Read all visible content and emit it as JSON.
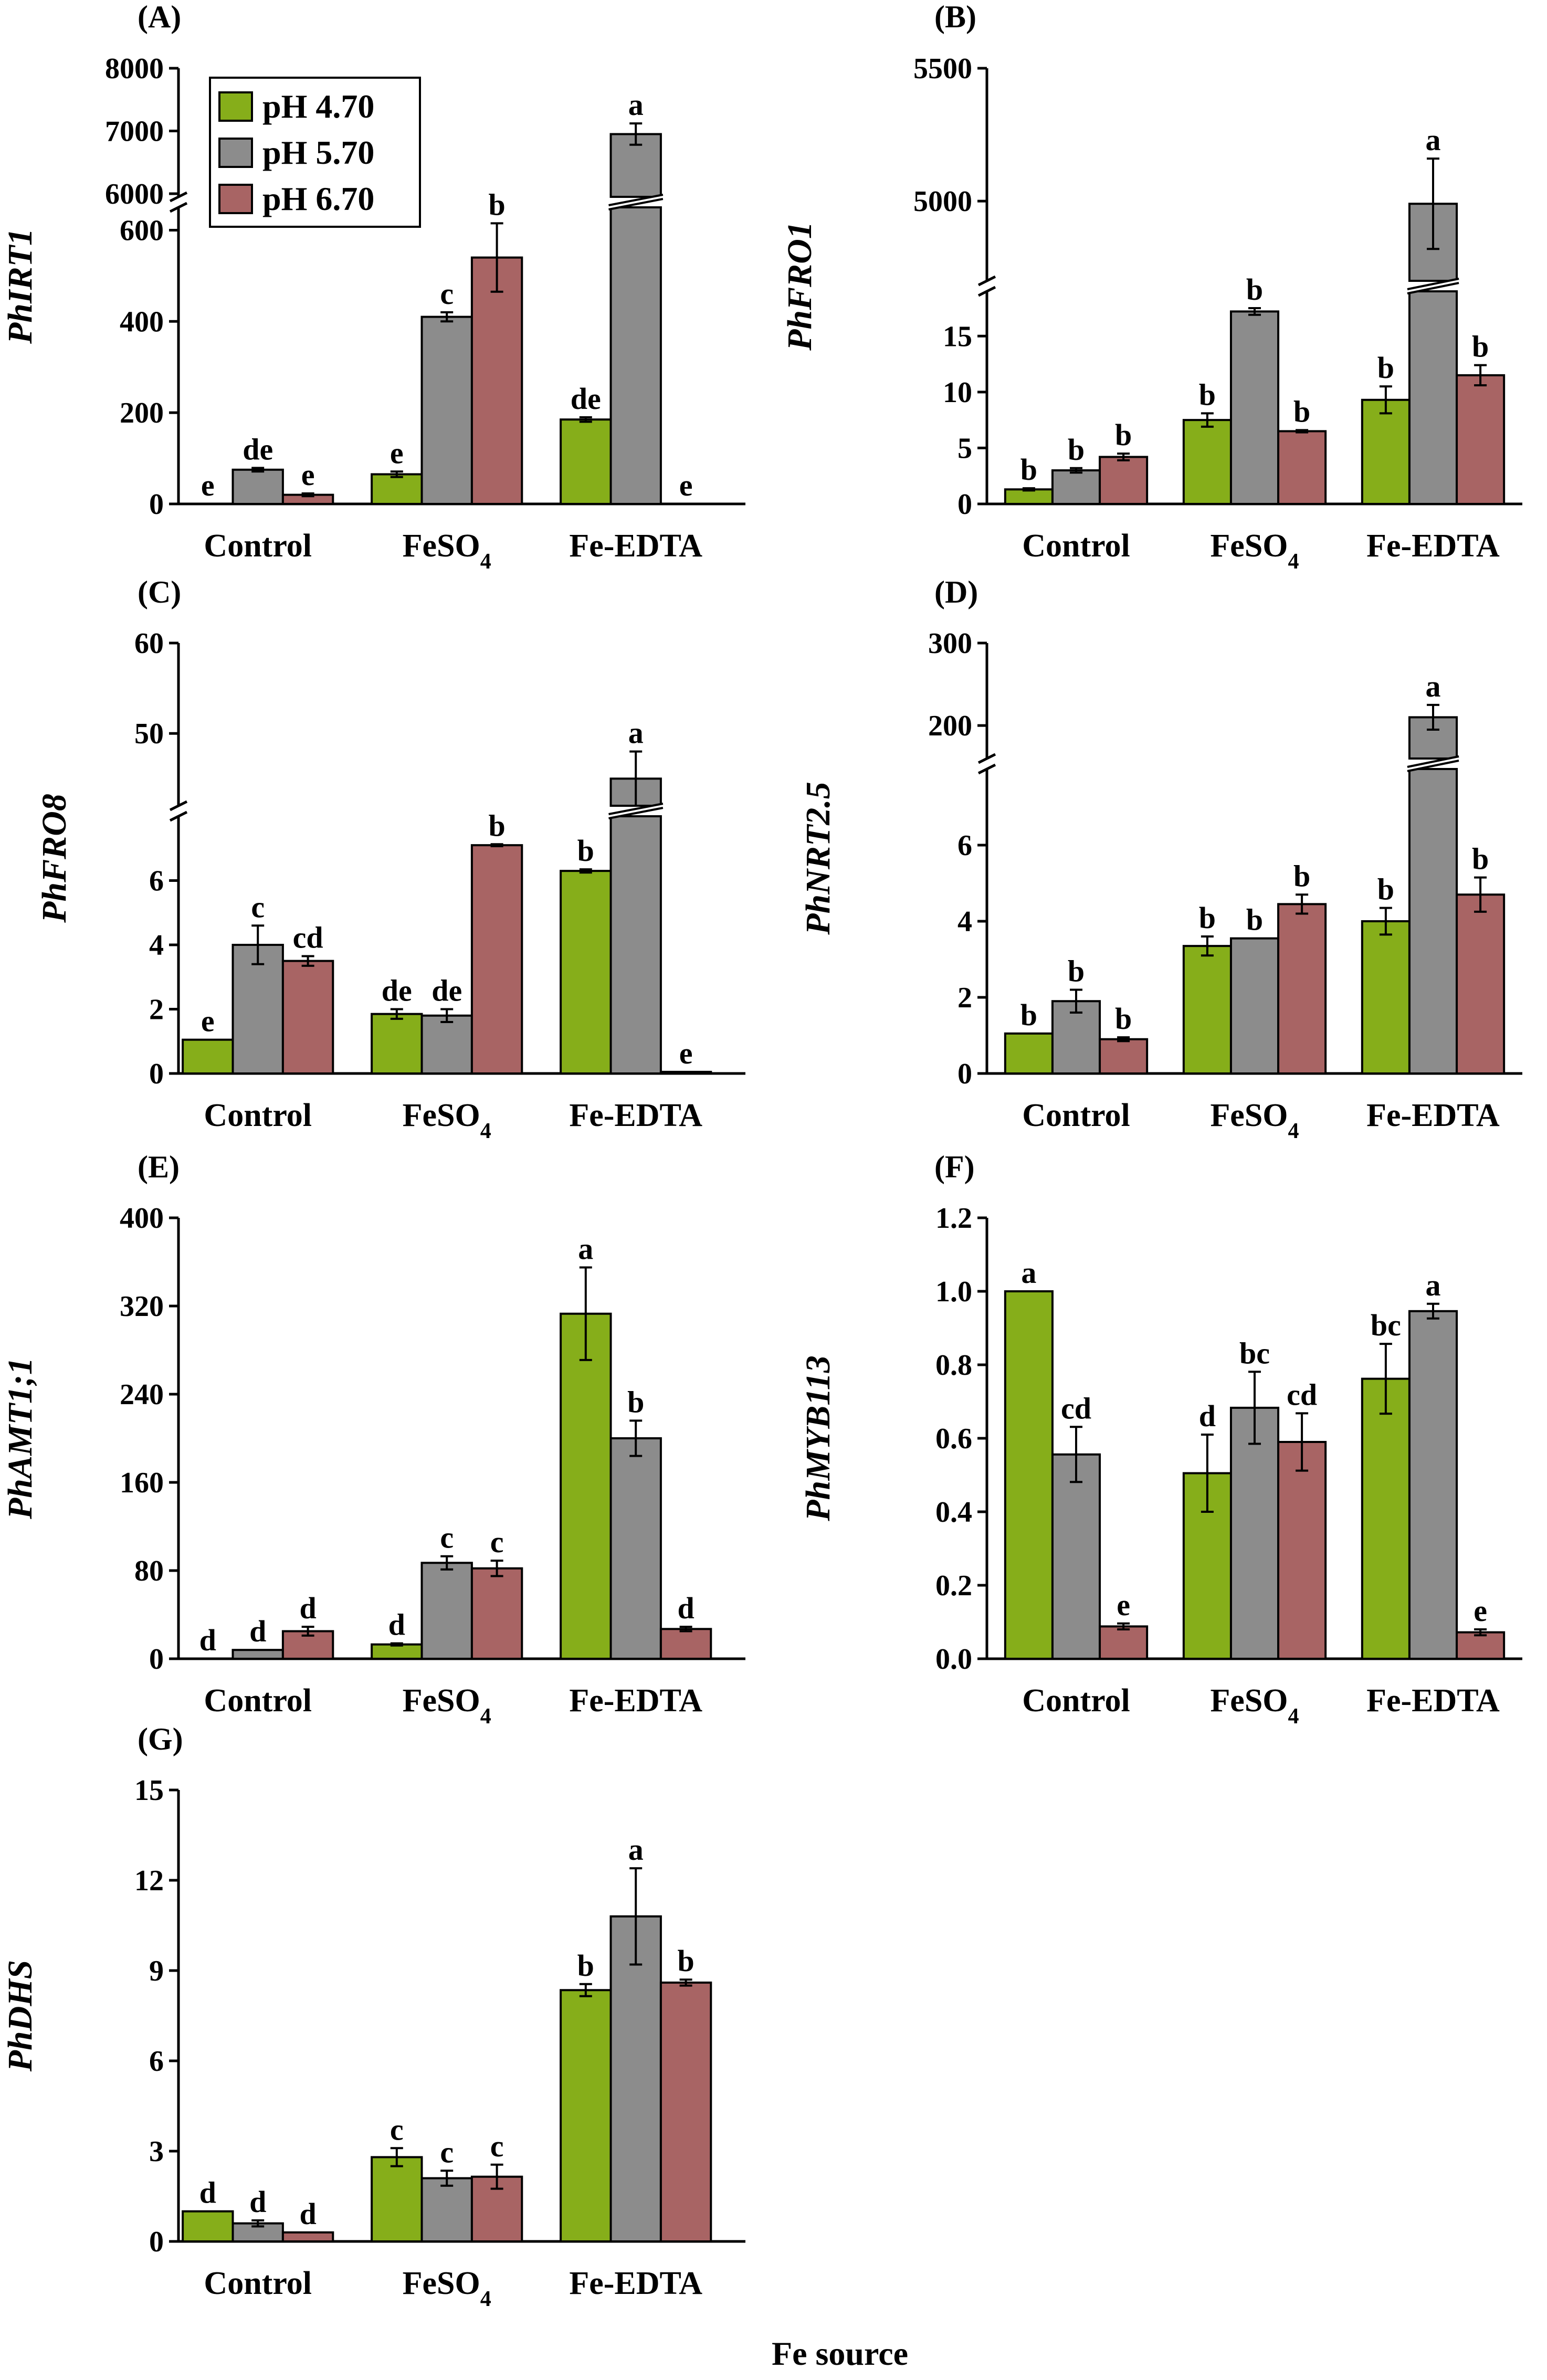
{
  "figure": {
    "x_axis_title": "Fe source"
  },
  "legend": [
    {
      "label": "pH 4.70",
      "color": "#86ae1a"
    },
    {
      "label": "pH 5.70",
      "color": "#8c8c8c"
    },
    {
      "label": "pH 6.70",
      "color": "#a86464"
    }
  ],
  "chart_data": [
    {
      "id": "A",
      "letter": "(A)",
      "type": "bar",
      "ylabel": "PhIRT1",
      "categories": [
        "Control",
        "FeSO",
        "Fe-EDTA"
      ],
      "category_subscripts": [
        "",
        "4",
        ""
      ],
      "axis": {
        "lower": {
          "min": 0,
          "max": 650,
          "ticks": [
            0,
            200,
            400,
            600
          ]
        },
        "upper": {
          "min": 5950,
          "max": 8000,
          "ticks": [
            6000,
            7000,
            8000
          ]
        }
      },
      "series": [
        {
          "name": "pH 4.70",
          "values": [
            0,
            65,
            185
          ],
          "errors": [
            0,
            6,
            5
          ],
          "letters": [
            "e",
            "e",
            "de"
          ]
        },
        {
          "name": "pH 5.70",
          "values": [
            75,
            410,
            6950
          ],
          "errors": [
            4,
            10,
            170
          ],
          "letters": [
            "de",
            "c",
            "a"
          ]
        },
        {
          "name": "pH 6.70",
          "values": [
            20,
            540,
            0
          ],
          "errors": [
            3,
            75,
            0
          ],
          "letters": [
            "e",
            "b",
            "e"
          ]
        }
      ],
      "show_legend": true
    },
    {
      "id": "B",
      "letter": "(B)",
      "type": "bar",
      "ylabel": "PhFRO1",
      "categories": [
        "Control",
        "FeSO",
        "Fe-EDTA"
      ],
      "category_subscripts": [
        "",
        "4",
        ""
      ],
      "axis": {
        "lower": {
          "min": 0,
          "max": 19,
          "ticks": [
            0,
            5,
            10,
            15
          ]
        },
        "upper": {
          "min": 4700,
          "max": 5500,
          "ticks": [
            5000,
            5500
          ]
        }
      },
      "series": [
        {
          "name": "pH 4.70",
          "values": [
            1.3,
            7.5,
            9.3
          ],
          "errors": [
            0.1,
            0.6,
            1.2
          ],
          "letters": [
            "b",
            "b",
            "b"
          ]
        },
        {
          "name": "pH 5.70",
          "values": [
            3,
            17.2,
            4990
          ],
          "errors": [
            0.2,
            0.3,
            170
          ],
          "letters": [
            "b",
            "b",
            "a"
          ]
        },
        {
          "name": "pH 6.70",
          "values": [
            4.2,
            6.5,
            11.5
          ],
          "errors": [
            0.3,
            0.1,
            0.9
          ],
          "letters": [
            "b",
            "b",
            "b"
          ]
        }
      ],
      "show_legend": false
    },
    {
      "id": "C",
      "letter": "(C)",
      "type": "bar",
      "ylabel": "PhFRO8",
      "categories": [
        "Control",
        "FeSO",
        "Fe-EDTA"
      ],
      "category_subscripts": [
        "",
        "4",
        ""
      ],
      "axis": {
        "lower": {
          "min": 0,
          "max": 8,
          "ticks": [
            0,
            2,
            4,
            6
          ]
        },
        "upper": {
          "min": 42,
          "max": 60,
          "ticks": [
            50,
            60
          ]
        }
      },
      "series": [
        {
          "name": "pH 4.70",
          "values": [
            1.05,
            1.85,
            6.3
          ],
          "errors": [
            0,
            0.15,
            0.05
          ],
          "letters": [
            "e",
            "de",
            "b"
          ]
        },
        {
          "name": "pH 5.70",
          "values": [
            4,
            1.8,
            45
          ],
          "errors": [
            0.6,
            0.2,
            3
          ],
          "letters": [
            "c",
            "de",
            "a"
          ]
        },
        {
          "name": "pH 6.70",
          "values": [
            3.5,
            7.1,
            0.05
          ],
          "errors": [
            0.15,
            0.03,
            0
          ],
          "letters": [
            "cd",
            "b",
            "e"
          ]
        }
      ],
      "show_legend": false
    },
    {
      "id": "D",
      "letter": "(D)",
      "type": "bar",
      "ylabel": "PhNRT2.5",
      "categories": [
        "Control",
        "FeSO",
        "Fe-EDTA"
      ],
      "category_subscripts": [
        "",
        "4",
        ""
      ],
      "axis": {
        "lower": {
          "min": 0,
          "max": 8,
          "ticks": [
            0,
            2,
            4,
            6
          ]
        },
        "upper": {
          "min": 160,
          "max": 300,
          "ticks": [
            200,
            300
          ]
        }
      },
      "series": [
        {
          "name": "pH 4.70",
          "values": [
            1.05,
            3.35,
            4
          ],
          "errors": [
            0,
            0.25,
            0.35
          ],
          "letters": [
            "b",
            "b",
            "b"
          ]
        },
        {
          "name": "pH 5.70",
          "values": [
            1.9,
            3.55,
            210
          ],
          "errors": [
            0.3,
            0,
            15
          ],
          "letters": [
            "b",
            "b",
            "a"
          ]
        },
        {
          "name": "pH 6.70",
          "values": [
            0.9,
            4.45,
            4.7
          ],
          "errors": [
            0.05,
            0.25,
            0.45
          ],
          "letters": [
            "b",
            "b",
            "b"
          ]
        }
      ],
      "show_legend": false
    },
    {
      "id": "E",
      "letter": "(E)",
      "type": "bar",
      "ylabel": "PhAMT1;1",
      "categories": [
        "Control",
        "FeSO",
        "Fe-EDTA"
      ],
      "category_subscripts": [
        "",
        "4",
        ""
      ],
      "axis": {
        "lower": {
          "min": 0,
          "max": 400,
          "ticks": [
            0,
            80,
            160,
            240,
            320,
            400
          ]
        }
      },
      "series": [
        {
          "name": "pH 4.70",
          "values": [
            0,
            13,
            313
          ],
          "errors": [
            0,
            1,
            42
          ],
          "letters": [
            "d",
            "d",
            "a"
          ]
        },
        {
          "name": "pH 5.70",
          "values": [
            8,
            87,
            200
          ],
          "errors": [
            0,
            6,
            16
          ],
          "letters": [
            "d",
            "c",
            "b"
          ]
        },
        {
          "name": "pH 6.70",
          "values": [
            25,
            82,
            27
          ],
          "errors": [
            4,
            7,
            2
          ],
          "letters": [
            "d",
            "c",
            "d"
          ]
        }
      ],
      "show_legend": false
    },
    {
      "id": "F",
      "letter": "(F)",
      "type": "bar",
      "ylabel": "PhMYB113",
      "categories": [
        "Control",
        "FeSO",
        "Fe-EDTA"
      ],
      "category_subscripts": [
        "",
        "4",
        ""
      ],
      "axis": {
        "lower": {
          "min": 0,
          "max": 1.2,
          "ticks": [
            "0.0",
            "0.2",
            "0.4",
            "0.6",
            "0.8",
            "1.0",
            "1.2"
          ]
        }
      },
      "series": [
        {
          "name": "pH 4.70",
          "values": [
            1.0,
            0.505,
            0.762
          ],
          "errors": [
            0,
            0.105,
            0.095
          ],
          "letters": [
            "a",
            "d",
            "bc"
          ]
        },
        {
          "name": "pH 5.70",
          "values": [
            0.556,
            0.683,
            0.946
          ],
          "errors": [
            0.075,
            0.098,
            0.02
          ],
          "letters": [
            "cd",
            "bc",
            "a"
          ]
        },
        {
          "name": "pH 6.70",
          "values": [
            0.088,
            0.59,
            0.072
          ],
          "errors": [
            0.008,
            0.078,
            0.008
          ],
          "letters": [
            "e",
            "cd",
            "e"
          ]
        }
      ],
      "show_legend": false
    },
    {
      "id": "G",
      "letter": "(G)",
      "type": "bar",
      "ylabel": "PhDHS",
      "categories": [
        "Control",
        "FeSO",
        "Fe-EDTA"
      ],
      "category_subscripts": [
        "",
        "4",
        ""
      ],
      "axis": {
        "lower": {
          "min": 0,
          "max": 15,
          "ticks": [
            0,
            3,
            6,
            9,
            12,
            15
          ]
        }
      },
      "series": [
        {
          "name": "pH 4.70",
          "values": [
            1,
            2.8,
            8.35
          ],
          "errors": [
            0,
            0.3,
            0.2
          ],
          "letters": [
            "d",
            "c",
            "b"
          ]
        },
        {
          "name": "pH 5.70",
          "values": [
            0.6,
            2.1,
            10.8
          ],
          "errors": [
            0.1,
            0.25,
            1.6
          ],
          "letters": [
            "d",
            "c",
            "a"
          ]
        },
        {
          "name": "pH 6.70",
          "values": [
            0.3,
            2.15,
            8.6
          ],
          "errors": [
            0,
            0.4,
            0.1
          ],
          "letters": [
            "d",
            "c",
            "b"
          ]
        }
      ],
      "show_legend": false
    }
  ]
}
